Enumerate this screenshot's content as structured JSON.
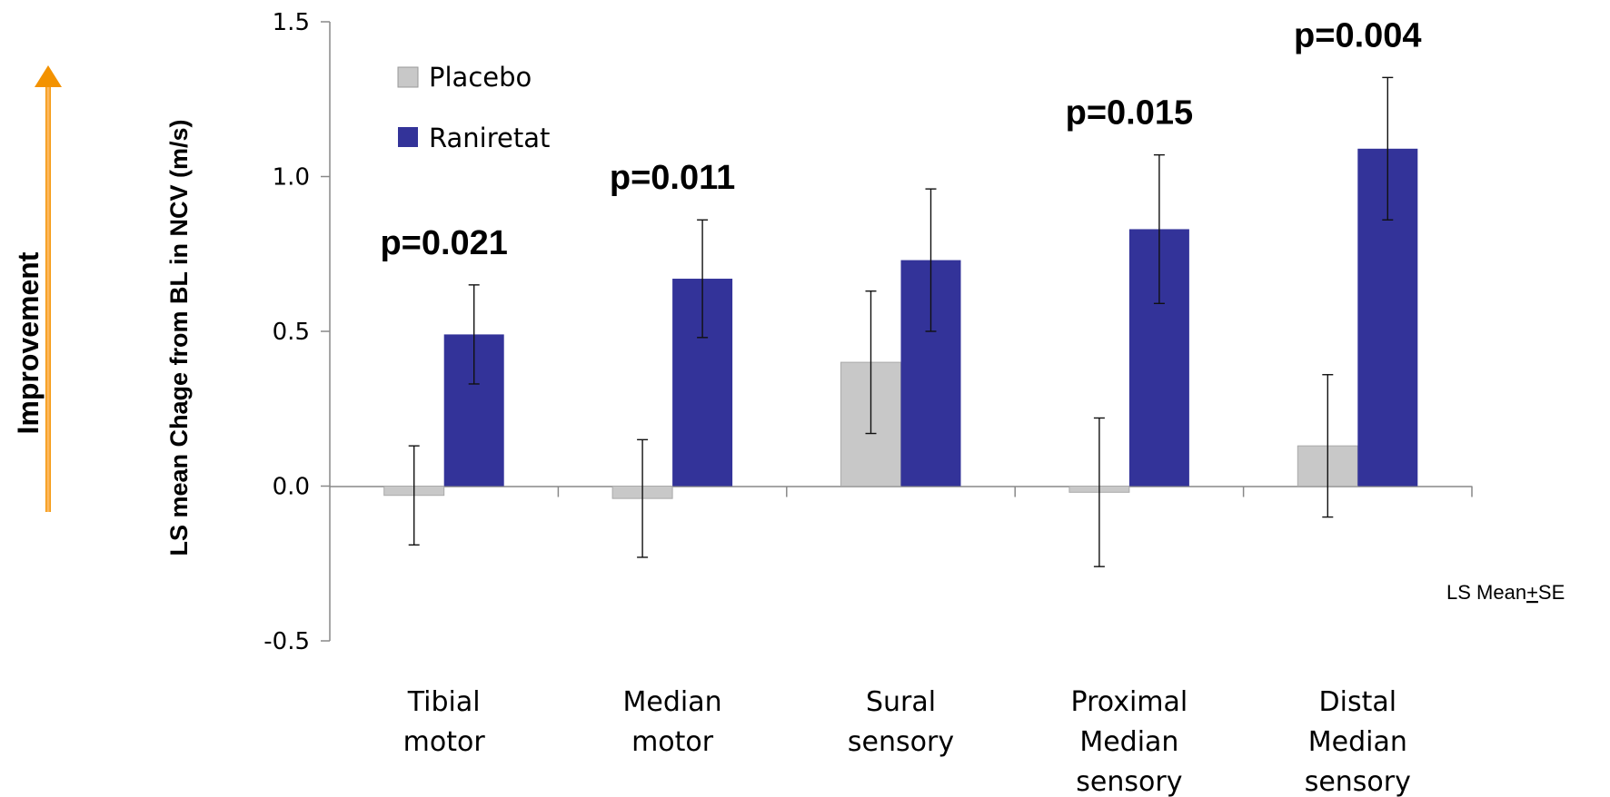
{
  "chart_data": {
    "type": "bar",
    "categories": [
      [
        "Tibial",
        "motor"
      ],
      [
        "Median",
        "motor"
      ],
      [
        "Sural",
        "sensory"
      ],
      [
        "Proximal",
        "Median",
        "sensory"
      ],
      [
        "Distal",
        "Median",
        "sensory"
      ]
    ],
    "series": [
      {
        "name": "Placebo",
        "color": "#c8c8c8",
        "values": [
          -0.03,
          -0.04,
          0.4,
          -0.02,
          0.13
        ],
        "se": [
          0.16,
          0.19,
          0.23,
          0.24,
          0.23
        ]
      },
      {
        "name": "Raniretat",
        "color": "#333399",
        "values": [
          0.49,
          0.67,
          0.73,
          0.83,
          1.09
        ],
        "se": [
          0.16,
          0.19,
          0.23,
          0.24,
          0.23
        ]
      }
    ],
    "p_values": [
      "p=0.021",
      "p=0.011",
      "",
      "p=0.015",
      "p=0.004"
    ],
    "ylabel": "LS mean Chage from BL in NCV  (m/s)",
    "yticks": [
      "1.5",
      "1.0",
      "0.5",
      "0.0",
      "-0.5"
    ],
    "ytick_values": [
      1.5,
      1.0,
      0.5,
      0.0,
      -0.5
    ],
    "ylim": [
      -0.5,
      1.5
    ],
    "legend_position": "top-left",
    "grid": false,
    "error_bar_note": "LS Mean",
    "error_bar_note_pm": "+",
    "error_bar_note_suffix": "SE",
    "direction_label": "Improvement",
    "direction_color": "#f39200"
  }
}
